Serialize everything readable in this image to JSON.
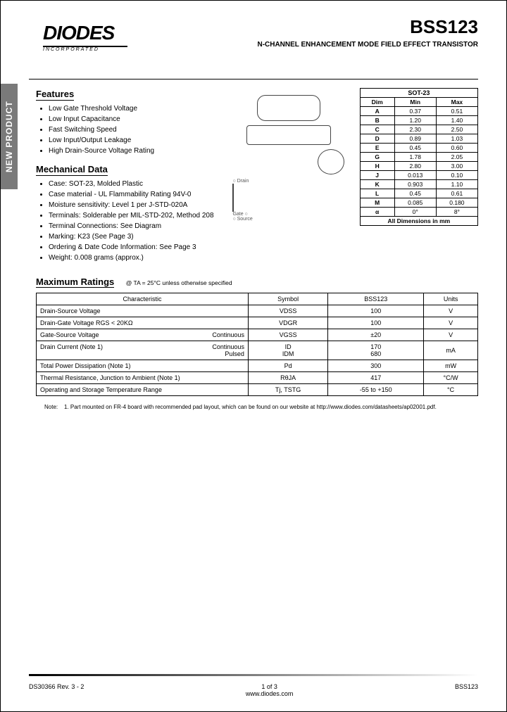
{
  "logo": {
    "name": "DIODES",
    "sub": "INCORPORATED"
  },
  "part_number": "BSS123",
  "subtitle": "N-CHANNEL ENHANCEMENT MODE FIELD EFFECT TRANSISTOR",
  "side_tab": "NEW PRODUCT",
  "features": {
    "title": "Features",
    "items": [
      "Low Gate Threshold Voltage",
      "Low Input Capacitance",
      "Fast Switching Speed",
      "Low Input/Output Leakage",
      "High Drain-Source Voltage Rating"
    ]
  },
  "mech": {
    "title": "Mechanical Data",
    "items": [
      "Case: SOT-23, Molded Plastic",
      "Case material - UL Flammability Rating 94V-0",
      "Moisture sensitivity:  Level 1 per J-STD-020A",
      "Terminals: Solderable per MIL-STD-202, Method 208",
      "Terminal Connections: See Diagram",
      "Marking: K23 (See Page 3)",
      "Ordering & Date Code Information: See Page 3",
      "Weight: 0.008 grams (approx.)"
    ]
  },
  "dim_table": {
    "caption": "SOT-23",
    "headers": [
      "Dim",
      "Min",
      "Max"
    ],
    "rows": [
      [
        "A",
        "0.37",
        "0.51"
      ],
      [
        "B",
        "1.20",
        "1.40"
      ],
      [
        "C",
        "2.30",
        "2.50"
      ],
      [
        "D",
        "0.89",
        "1.03"
      ],
      [
        "E",
        "0.45",
        "0.60"
      ],
      [
        "G",
        "1.78",
        "2.05"
      ],
      [
        "H",
        "2.80",
        "3.00"
      ],
      [
        "J",
        "0.013",
        "0.10"
      ],
      [
        "K",
        "0.903",
        "1.10"
      ],
      [
        "L",
        "0.45",
        "0.61"
      ],
      [
        "M",
        "0.085",
        "0.180"
      ],
      [
        "α",
        "0°",
        "8°"
      ]
    ],
    "footer": "All Dimensions in mm"
  },
  "max_ratings": {
    "title": "Maximum Ratings",
    "condition": "@ TA = 25°C unless otherwise specified",
    "headers": [
      "Characteristic",
      "Symbol",
      "BSS123",
      "Units"
    ],
    "rows": [
      {
        "char": "Drain-Source Voltage",
        "sub": "",
        "sym": "VDSS",
        "val": "100",
        "unit": "V"
      },
      {
        "char": "Drain-Gate Voltage RGS < 20KΩ",
        "sub": "",
        "sym": "VDGR",
        "val": "100",
        "unit": "V"
      },
      {
        "char": "Gate-Source Voltage",
        "sub": "Continuous",
        "sym": "VGSS",
        "val": "±20",
        "unit": "V"
      },
      {
        "char": "Drain Current (Note 1)",
        "sub": "Continuous\nPulsed",
        "sym": "ID\nIDM",
        "val": "170\n680",
        "unit": "mA"
      },
      {
        "char": "Total Power Dissipation (Note 1)",
        "sub": "",
        "sym": "Pd",
        "val": "300",
        "unit": "mW"
      },
      {
        "char": "Thermal Resistance, Junction to Ambient (Note 1)",
        "sub": "",
        "sym": "RθJA",
        "val": "417",
        "unit": "°C/W"
      },
      {
        "char": "Operating and Storage Temperature Range",
        "sub": "",
        "sym": "Tj, TSTG",
        "val": "-55 to +150",
        "unit": "°C"
      }
    ]
  },
  "note": {
    "label": "Note:",
    "num": "1.",
    "text": "Part mounted on FR-4 board with recommended pad layout, which can be found on our website at http://www.diodes.com/datasheets/ap02001.pdf."
  },
  "footer": {
    "left": "DS30366 Rev. 3 - 2",
    "mid_page": "1 of 3",
    "mid_url": "www.diodes.com",
    "right": "BSS123"
  }
}
